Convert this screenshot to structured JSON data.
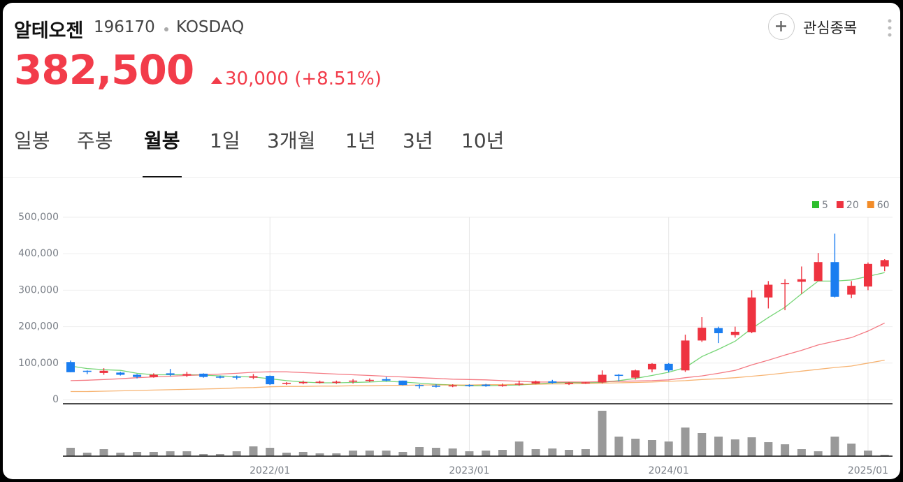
{
  "header": {
    "name": "알테오젠",
    "code": "196170",
    "market": "KOSDAQ",
    "watch_label": "관심종목"
  },
  "quote": {
    "price": "382,500",
    "change": "30,000 (+8.51%)"
  },
  "tabs": {
    "items": [
      "일봉",
      "주봉",
      "월봉",
      "1일",
      "3개월",
      "1년",
      "3년",
      "10년"
    ],
    "active": 2
  },
  "chart_data": {
    "type": "candlestick",
    "categories": [
      null,
      null,
      null,
      null,
      null,
      null,
      null,
      null,
      null,
      null,
      null,
      null,
      "2022/01",
      null,
      null,
      null,
      null,
      null,
      null,
      null,
      null,
      null,
      null,
      null,
      "2023/01",
      null,
      null,
      null,
      null,
      null,
      null,
      null,
      null,
      null,
      null,
      null,
      "2024/01",
      null,
      null,
      null,
      null,
      null,
      null,
      null,
      null,
      null,
      null,
      null,
      "2025/01",
      null
    ],
    "open": [
      103000,
      79000,
      73000,
      74000,
      68000,
      62000,
      72000,
      66000,
      71000,
      63000,
      63000,
      60000,
      65000,
      43000,
      45000,
      47000,
      47000,
      49000,
      51000,
      56000,
      52000,
      40000,
      38000,
      36000,
      40000,
      41000,
      38000,
      41000,
      44000,
      50000,
      43000,
      45000,
      47000,
      68000,
      60000,
      83000,
      98000,
      80000,
      162000,
      196000,
      177000,
      185000,
      280000,
      318000,
      323000,
      325000,
      377000,
      288000,
      310000,
      365000
    ],
    "high": [
      107000,
      80000,
      86000,
      76000,
      70000,
      72000,
      84000,
      76000,
      72000,
      66000,
      66000,
      70000,
      66000,
      48000,
      52000,
      52000,
      52000,
      56000,
      58000,
      62000,
      52000,
      42000,
      42000,
      42000,
      42000,
      43000,
      44000,
      52000,
      52000,
      54000,
      48000,
      48000,
      80000,
      70000,
      82000,
      100000,
      100000,
      178000,
      226000,
      200000,
      200000,
      300000,
      325000,
      330000,
      365000,
      402000,
      455000,
      325000,
      376000,
      385000
    ],
    "low": [
      75000,
      70000,
      68000,
      66000,
      58000,
      60000,
      64000,
      62000,
      60000,
      58000,
      55000,
      56000,
      40000,
      40000,
      42000,
      44000,
      43000,
      44000,
      48000,
      50000,
      39000,
      30000,
      33000,
      34000,
      35000,
      35000,
      35000,
      38000,
      42000,
      44000,
      40000,
      43000,
      44000,
      50000,
      55000,
      75000,
      75000,
      76000,
      158000,
      155000,
      170000,
      182000,
      250000,
      245000,
      290000,
      325000,
      280000,
      278000,
      300000,
      352000
    ],
    "close": [
      75000,
      76000,
      79000,
      68000,
      62000,
      68000,
      68000,
      70000,
      62000,
      60000,
      60000,
      64000,
      42000,
      46000,
      48000,
      49000,
      49000,
      52000,
      54000,
      52000,
      40000,
      37000,
      35000,
      39000,
      37000,
      37000,
      40000,
      44000,
      50000,
      46000,
      46000,
      47000,
      68000,
      65000,
      80000,
      98000,
      80000,
      162000,
      197000,
      182000,
      186000,
      280000,
      315000,
      320000,
      330000,
      377000,
      282000,
      312000,
      372000,
      382500
    ],
    "up_color": "#ee3340",
    "down_color": "#1a7df0",
    "series": [
      {
        "name": "5",
        "color": "#2dbf2d",
        "values": [
          92000,
          85000,
          82000,
          80000,
          72000,
          68000,
          68000,
          68000,
          67000,
          65000,
          63000,
          62000,
          57000,
          52000,
          48000,
          46000,
          46000,
          47000,
          48000,
          50000,
          48000,
          45000,
          42000,
          40000,
          38000,
          38000,
          39000,
          40000,
          43000,
          46000,
          47000,
          46000,
          47000,
          52000,
          58000,
          66000,
          75000,
          88000,
          118000,
          138000,
          160000,
          195000,
          225000,
          253000,
          290000,
          325000,
          325000,
          328000,
          338000,
          348000
        ]
      },
      {
        "name": "20",
        "color": "#ee3340",
        "values": [
          52000,
          53000,
          55000,
          57000,
          60000,
          62000,
          64000,
          66000,
          68000,
          70000,
          72000,
          75000,
          76000,
          76000,
          74000,
          72000,
          70000,
          68000,
          66000,
          64000,
          62000,
          60000,
          58000,
          56000,
          55000,
          54000,
          52000,
          50000,
          48000,
          48000,
          48000,
          48000,
          49000,
          50000,
          51000,
          52000,
          54000,
          60000,
          65000,
          72000,
          80000,
          95000,
          108000,
          122000,
          135000,
          150000,
          160000,
          170000,
          188000,
          210000
        ]
      },
      {
        "name": "60",
        "color": "#f28c28",
        "values": [
          22000,
          22000,
          23000,
          24000,
          25000,
          26000,
          27000,
          28000,
          29000,
          30000,
          32000,
          33000,
          35000,
          36000,
          36000,
          37000,
          37000,
          38000,
          38000,
          39000,
          39000,
          40000,
          40000,
          40000,
          40000,
          41000,
          41000,
          42000,
          42000,
          43000,
          43000,
          44000,
          45000,
          46000,
          47000,
          48000,
          50000,
          52000,
          55000,
          57000,
          60000,
          64000,
          68000,
          73000,
          78000,
          83000,
          88000,
          92000,
          100000,
          108000
        ]
      }
    ],
    "volume": {
      "color": "#999999",
      "values": [
        12,
        5,
        10,
        5,
        6,
        6,
        7,
        7,
        3,
        3,
        7,
        14,
        12,
        5,
        6,
        4,
        4,
        8,
        8,
        8,
        6,
        13,
        12,
        11,
        7,
        8,
        9,
        21,
        10,
        11,
        9,
        10,
        65,
        28,
        25,
        23,
        21,
        41,
        33,
        28,
        24,
        27,
        20,
        17,
        10,
        7,
        28,
        18,
        8,
        2
      ]
    },
    "ylim": [
      0,
      500000
    ],
    "yticks": [
      0,
      {
        "value": 100000,
        "label": "100,000"
      },
      {
        "value": 200000,
        "label": "200,000"
      },
      {
        "value": 300000,
        "label": "300,000"
      },
      {
        "value": 400000,
        "label": "400,000"
      },
      {
        "value": 500000,
        "label": "500,000"
      }
    ],
    "grid": true,
    "legend": "top-right"
  }
}
